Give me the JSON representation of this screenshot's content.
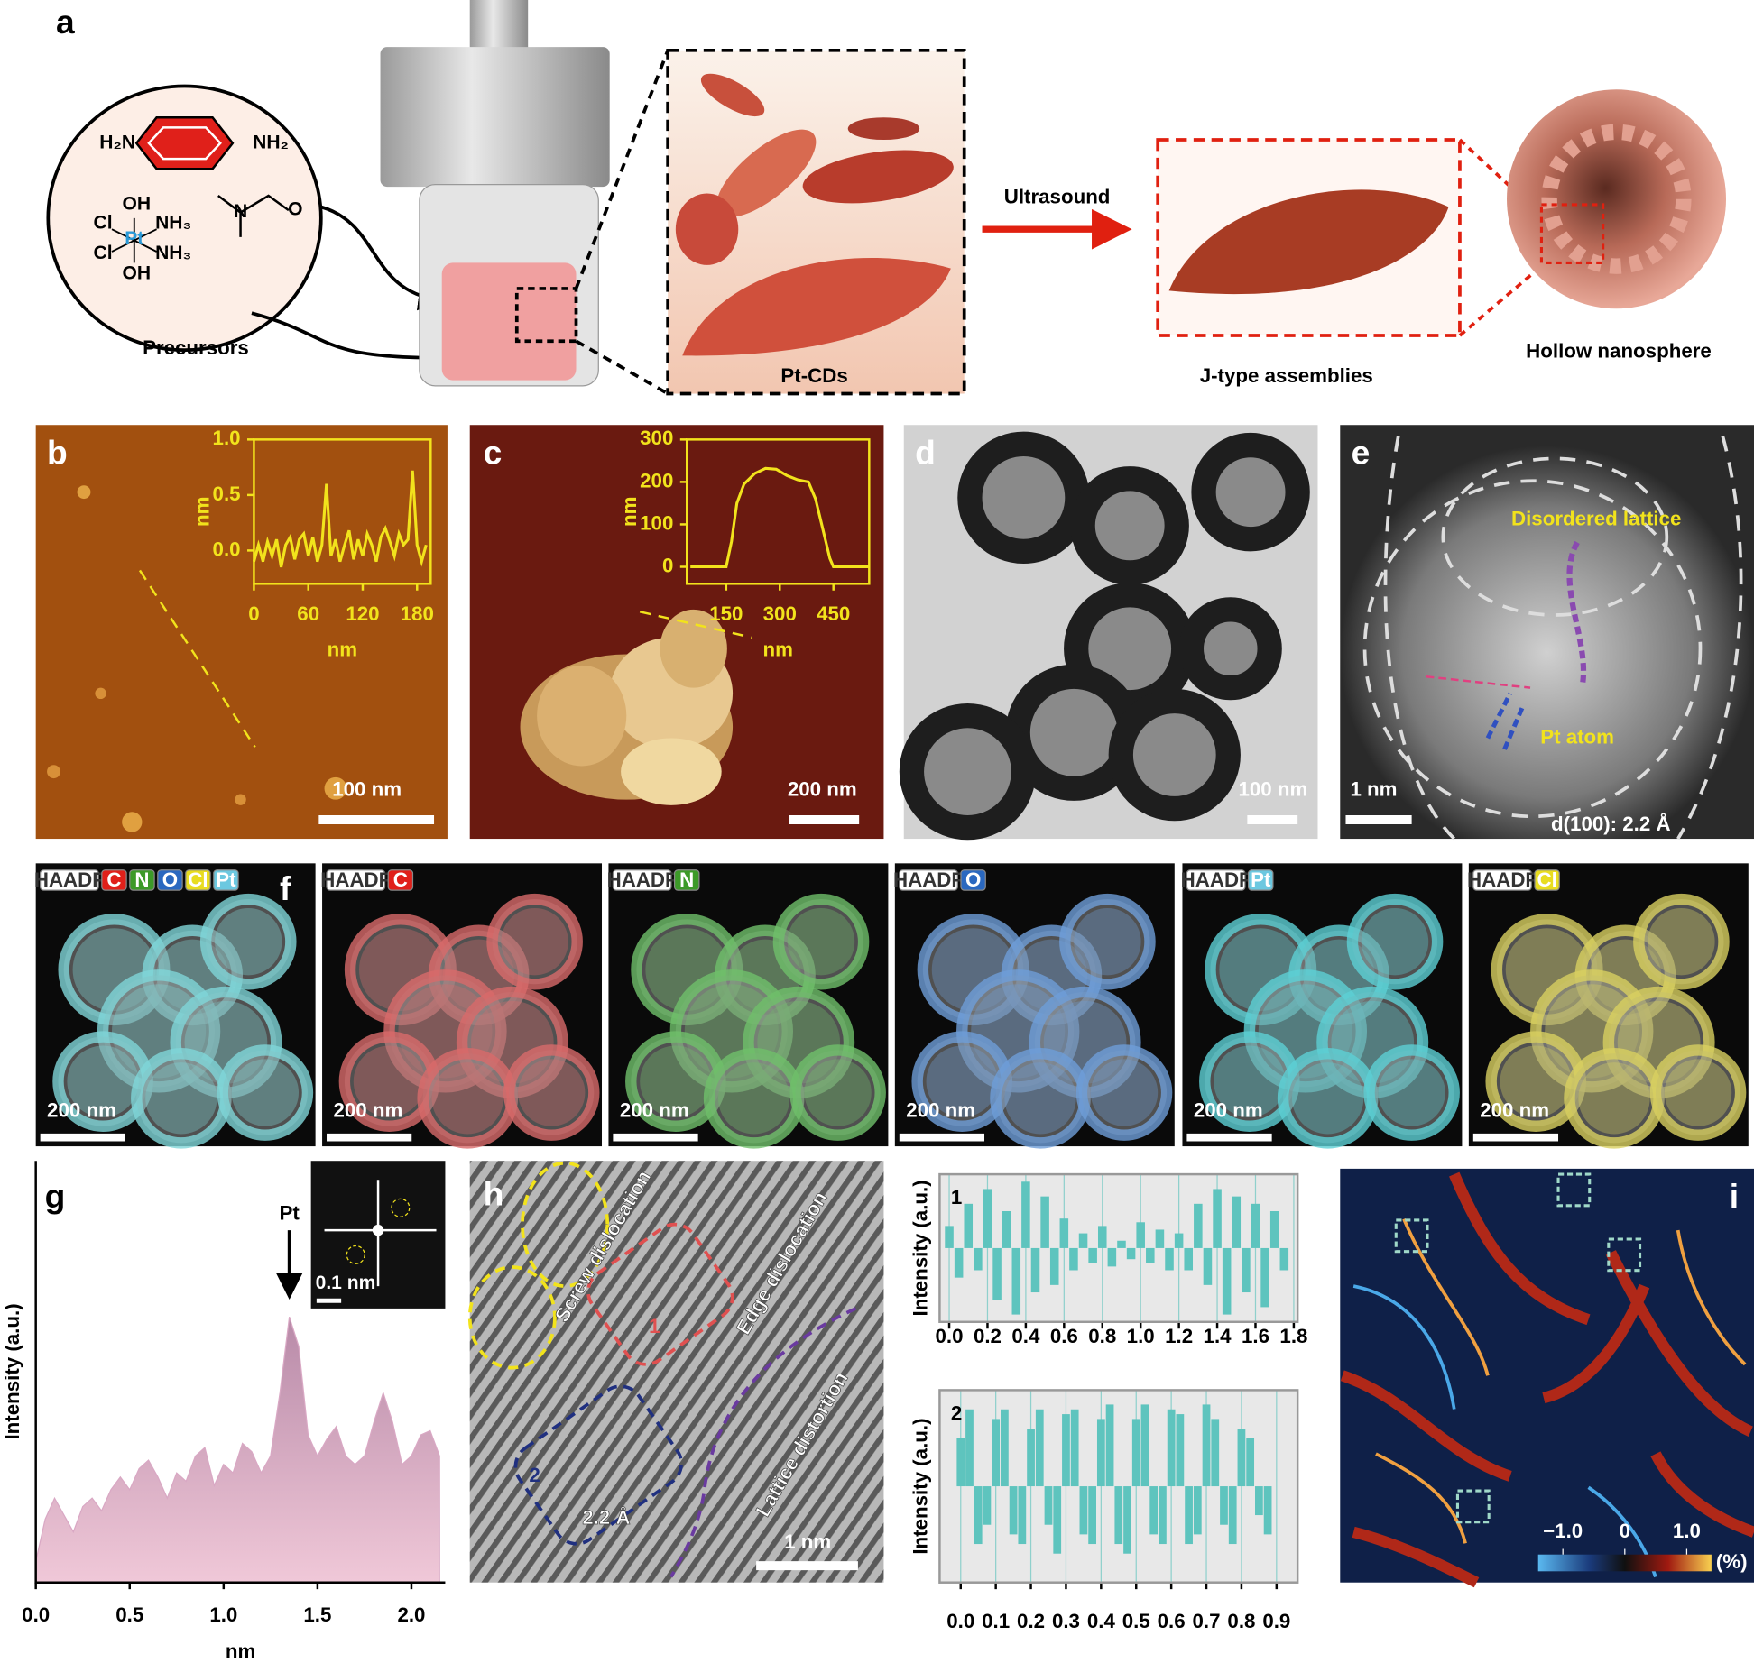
{
  "panel_labels": [
    "a",
    "b",
    "c",
    "d",
    "e",
    "f",
    "g",
    "h",
    "i"
  ],
  "scheme": {
    "amine_left": "H₂N",
    "amine_right": "NH₂",
    "pt_complex": [
      "OH",
      "Cl",
      "Pt",
      "NH₃",
      "Cl",
      "NH₃",
      "OH"
    ],
    "dmf": [
      "N",
      "O"
    ],
    "precursors": "Precursors",
    "pt_cds": "Pt-CDs",
    "ultrasound": "Ultrasound",
    "j_type": "J-type assemblies",
    "hollow": "Hollow nanosphere"
  },
  "scale_bars": {
    "b": "100 nm",
    "c": "200 nm",
    "d": "100 nm",
    "e": "1 nm",
    "g_inset": "0.1 nm",
    "h": "1 nm"
  },
  "e_labels": {
    "disordered": "Disordered lattice",
    "pt_atom": "Pt atom",
    "spacing": "d(100): 2.2 Å"
  },
  "h_labels": {
    "screw": "Screw dislocation",
    "edge": "Edge dislocation",
    "distortion": "Lattice distortion",
    "region1": "1",
    "region2": "2",
    "spacing": "2.2 Å"
  },
  "f_maps": [
    {
      "tags": [
        "HAADF",
        "C",
        "N",
        "O",
        "Cl",
        "Pt"
      ],
      "tag_colors": [
        "#ffffff",
        "#e0201a",
        "#3c9a28",
        "#2a68c0",
        "#e8dc20",
        "#6cc8e0"
      ],
      "color": "#7fd6d8",
      "scale_bar": "200 nm"
    },
    {
      "tags": [
        "HAADF",
        "C"
      ],
      "tag_colors": [
        "#ffffff",
        "#e0201a"
      ],
      "color": "#d86a6a",
      "scale_bar": "200 nm"
    },
    {
      "tags": [
        "HAADF",
        "N"
      ],
      "tag_colors": [
        "#ffffff",
        "#3c9a28"
      ],
      "color": "#6fbf6a",
      "scale_bar": "200 nm"
    },
    {
      "tags": [
        "HAADF",
        "O"
      ],
      "tag_colors": [
        "#ffffff",
        "#2a68c0"
      ],
      "color": "#6e9ed8",
      "scale_bar": "200 nm"
    },
    {
      "tags": [
        "HAADF",
        "Pt"
      ],
      "tag_colors": [
        "#ffffff",
        "#6cc8e0"
      ],
      "color": "#5ccfd4",
      "scale_bar": "200 nm"
    },
    {
      "tags": [
        "HAADF",
        "Cl"
      ],
      "tag_colors": [
        "#ffffff",
        "#e8dc20"
      ],
      "color": "#d8d060",
      "scale_bar": "200 nm"
    }
  ],
  "chart_data": [
    {
      "type": "line",
      "x_label": "nm",
      "y_label": "nm",
      "color": "#f2e31c",
      "x": [
        0,
        5,
        10,
        15,
        20,
        25,
        30,
        35,
        40,
        45,
        50,
        55,
        60,
        65,
        70,
        75,
        80,
        85,
        90,
        95,
        100,
        105,
        110,
        115,
        120,
        125,
        130,
        135,
        140,
        145,
        150,
        155,
        160,
        165,
        170,
        175,
        180,
        185,
        190
      ],
      "values": [
        -0.1,
        0.05,
        -0.1,
        0.08,
        -0.05,
        0.1,
        -0.15,
        0.05,
        0.12,
        -0.08,
        0.1,
        0.15,
        -0.05,
        0.12,
        -0.1,
        0.05,
        0.6,
        -0.05,
        0.1,
        -0.1,
        0.05,
        0.18,
        -0.08,
        0.1,
        -0.05,
        0.15,
        0.05,
        -0.1,
        0.12,
        0.2,
        0.08,
        -0.05,
        0.15,
        0.05,
        0.1,
        0.72,
        0.05,
        -0.1,
        0.05
      ],
      "xlim": [
        0,
        195
      ],
      "ylim": [
        -0.3,
        1.0
      ],
      "xticks": [
        0,
        60,
        120,
        180
      ],
      "yticks": [
        {
          "value": 0,
          "label": "0.0"
        },
        0.5,
        {
          "value": 1,
          "label": "1.0"
        }
      ]
    },
    {
      "type": "line",
      "x_label": "nm",
      "y_label": "nm",
      "color": "#f2e31c",
      "x": [
        50,
        100,
        150,
        165,
        180,
        200,
        230,
        260,
        290,
        320,
        350,
        380,
        400,
        420,
        440,
        450,
        500,
        550
      ],
      "values": [
        0,
        0,
        0,
        60,
        150,
        195,
        220,
        232,
        230,
        215,
        205,
        200,
        160,
        90,
        20,
        0,
        0,
        0
      ],
      "xlim": [
        40,
        550
      ],
      "ylim": [
        -40,
        300
      ],
      "xticks": [
        150,
        300,
        450
      ],
      "yticks": [
        0,
        100,
        200,
        300
      ]
    },
    {
      "type": "area",
      "x_label": "nm",
      "y_label": "Intensity (a.u.)",
      "color": "#d9a8c4",
      "annotation": {
        "text": "Pt",
        "x": 1.35
      },
      "x": [
        0,
        0.05,
        0.1,
        0.15,
        0.2,
        0.25,
        0.3,
        0.35,
        0.4,
        0.45,
        0.5,
        0.55,
        0.6,
        0.65,
        0.7,
        0.75,
        0.8,
        0.85,
        0.9,
        0.95,
        1.0,
        1.05,
        1.1,
        1.15,
        1.2,
        1.25,
        1.3,
        1.35,
        1.4,
        1.45,
        1.5,
        1.55,
        1.6,
        1.65,
        1.7,
        1.75,
        1.8,
        1.85,
        1.9,
        1.95,
        2.0,
        2.05,
        2.1,
        2.15
      ],
      "values": [
        0.05,
        0.15,
        0.2,
        0.16,
        0.12,
        0.18,
        0.2,
        0.17,
        0.22,
        0.25,
        0.22,
        0.27,
        0.29,
        0.25,
        0.2,
        0.26,
        0.24,
        0.3,
        0.32,
        0.23,
        0.28,
        0.26,
        0.33,
        0.31,
        0.26,
        0.3,
        0.45,
        0.63,
        0.56,
        0.35,
        0.3,
        0.34,
        0.37,
        0.3,
        0.28,
        0.3,
        0.38,
        0.45,
        0.38,
        0.28,
        0.3,
        0.35,
        0.36,
        0.3
      ],
      "xlim": [
        0,
        2.18
      ],
      "ylim": [
        0,
        1
      ],
      "xticks": [
        {
          "value": 0,
          "label": "0.0"
        },
        0.5,
        {
          "value": 1,
          "label": "1.0"
        },
        1.5,
        {
          "value": 2,
          "label": "2.0"
        }
      ]
    },
    {
      "type": "bar",
      "label": "1",
      "y_label": "Intensity (a.u.)",
      "color": "#5ec4be",
      "grid": true,
      "x": [
        0,
        0.05,
        0.1,
        0.15,
        0.2,
        0.25,
        0.3,
        0.35,
        0.4,
        0.45,
        0.5,
        0.55,
        0.6,
        0.65,
        0.7,
        0.75,
        0.8,
        0.85,
        0.9,
        0.95,
        1.0,
        1.05,
        1.1,
        1.15,
        1.2,
        1.25,
        1.3,
        1.35,
        1.4,
        1.45,
        1.5,
        1.55,
        1.6,
        1.65,
        1.7,
        1.75
      ],
      "values": [
        0.3,
        -0.4,
        0.6,
        -0.3,
        0.8,
        -0.7,
        0.5,
        -0.9,
        0.9,
        -0.6,
        0.7,
        -0.5,
        0.4,
        -0.3,
        0.2,
        -0.2,
        0.3,
        -0.25,
        0.1,
        -0.15,
        0.35,
        -0.2,
        0.25,
        -0.3,
        0.2,
        -0.3,
        0.6,
        -0.5,
        0.8,
        -0.9,
        0.7,
        -0.6,
        0.6,
        -0.8,
        0.5,
        -0.3
      ],
      "xlim": [
        -0.05,
        1.82
      ],
      "ylim": [
        -1,
        1
      ],
      "xticks": [
        {
          "value": 0,
          "label": "0.0"
        },
        0.2,
        0.4,
        0.6,
        0.8,
        {
          "value": 1,
          "label": "1.0"
        },
        1.2,
        1.4,
        1.6,
        1.8
      ]
    },
    {
      "type": "bar",
      "label": "2",
      "y_label": "Intensity (a.u.)",
      "color": "#5ec4be",
      "grid": true,
      "x": [
        0,
        0.025,
        0.05,
        0.075,
        0.1,
        0.125,
        0.15,
        0.175,
        0.2,
        0.225,
        0.25,
        0.275,
        0.3,
        0.325,
        0.35,
        0.375,
        0.4,
        0.425,
        0.45,
        0.475,
        0.5,
        0.525,
        0.55,
        0.575,
        0.6,
        0.625,
        0.65,
        0.675,
        0.7,
        0.725,
        0.75,
        0.775,
        0.8,
        0.825,
        0.85,
        0.875
      ],
      "values": [
        0.5,
        0.8,
        -0.6,
        -0.4,
        0.7,
        0.8,
        -0.5,
        -0.6,
        0.6,
        0.8,
        -0.4,
        -0.7,
        0.75,
        0.8,
        -0.5,
        -0.6,
        0.7,
        0.85,
        -0.6,
        -0.7,
        0.7,
        0.85,
        -0.5,
        -0.6,
        0.8,
        0.75,
        -0.6,
        -0.5,
        0.85,
        0.7,
        -0.4,
        -0.6,
        0.6,
        0.5,
        -0.3,
        -0.5
      ],
      "xlim": [
        -0.06,
        0.96
      ],
      "ylim": [
        -1,
        1
      ],
      "xticks": [
        {
          "value": 0,
          "label": "0.0"
        },
        0.1,
        0.2,
        0.3,
        0.4,
        0.5,
        0.6,
        0.7,
        0.8,
        0.9
      ]
    },
    {
      "type": "colorbar",
      "unit": "(%)",
      "xlim": [
        -1.4,
        1.4
      ],
      "xticks": [
        {
          "value": -1,
          "label": "−1.0"
        },
        0,
        {
          "value": 1,
          "label": "1.0"
        }
      ]
    }
  ]
}
